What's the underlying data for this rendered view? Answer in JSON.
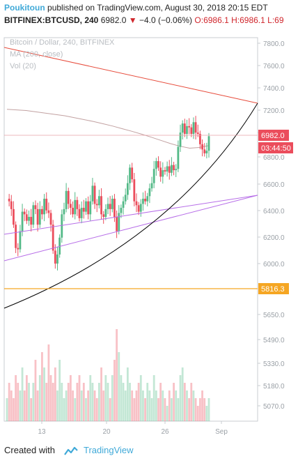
{
  "header": {
    "author": "Poukitoun",
    "published_text": "published on TradingView.com, August 30, 2018 20:15 EDT",
    "symbol": "BITFINEX:BTCUSD, 240",
    "last": "6982.0",
    "change_arrow": "▼",
    "change": "−4.0 (−0.06%)",
    "open_label": "O:",
    "open": "6986.1",
    "high_label": "H:",
    "high": "6986.1",
    "low_label": "L:",
    "low": "69"
  },
  "footer": {
    "created_with": "Created with",
    "brand": "TradingView"
  },
  "colors": {
    "up": "#53b987",
    "down": "#eb4d5c",
    "ma": "#c2a1a1",
    "resistance": "#e74c3c",
    "support_curve": "#000000",
    "lower_trend": "#b76ee8",
    "level_line": "#f5a623",
    "axis_text": "#9aa0a6"
  },
  "chart_data": {
    "type": "candlestick",
    "title": "Bitcoin / Dollar, 240, BITFINEX",
    "legend": [
      "Bitcoin / Dollar, 240, BITFINEX",
      "MA (200, close)",
      "Vol (20)"
    ],
    "price_axis_ticks": [
      "7800.0",
      "7600.0",
      "7400.0",
      "7200.0",
      "7000.0",
      "6800.0",
      "6600.0",
      "6400.0",
      "6200.0",
      "6000.0",
      "5650.0",
      "5490.0",
      "5330.0",
      "5180.0",
      "5070.0"
    ],
    "x_ticks": [
      "13",
      "20",
      "26",
      "Sep"
    ],
    "last_price_label": "6982.0",
    "countdown_label": "03:44:50",
    "level_label": "5816.3",
    "level_value": 5816.3,
    "price_range": [
      5800,
      7900
    ],
    "price_series": [
      6500,
      6480,
      6420,
      6300,
      6120,
      6110,
      6250,
      6400,
      6380,
      6330,
      6360,
      6300,
      6450,
      6420,
      6300,
      6420,
      6380,
      6500,
      6410,
      6390,
      6300,
      6100,
      6000,
      6070,
      6200,
      6380,
      6420,
      6560,
      6460,
      6430,
      6380,
      6490,
      6420,
      6350,
      6430,
      6400,
      6480,
      6380,
      6480,
      6600,
      6460,
      6450,
      6520,
      6380,
      6360,
      6420,
      6460,
      6420,
      6500,
      6360,
      6250,
      6390,
      6430,
      6480,
      6530,
      6620,
      6740,
      6650,
      6480,
      6450,
      6400,
      6460,
      6500,
      6480,
      6520,
      6580,
      6620,
      6730,
      6790,
      6740,
      6670,
      6720,
      6710,
      6750,
      6700,
      6760,
      6720,
      6730,
      6900,
      7010,
      7080,
      7000,
      7060,
      7050,
      7000,
      7090,
      7010,
      7000,
      6920,
      6880,
      6850,
      6870,
      6982
    ],
    "ma200_series": [
      7190,
      7185,
      7180,
      7170,
      7160,
      7150,
      7140,
      7125,
      7110,
      7095,
      7078,
      7060,
      7040,
      7020,
      6998,
      6975,
      6950,
      6925,
      6905,
      6890,
      6895,
      6910
    ],
    "volume_series": [
      0.3,
      0.5,
      0.4,
      0.3,
      0.6,
      0.5,
      0.4,
      0.7,
      0.4,
      0.6,
      0.5,
      0.3,
      0.5,
      0.8,
      0.4,
      0.6,
      0.9,
      0.7,
      0.5,
      1.0,
      0.6,
      0.5,
      0.7,
      0.4,
      0.8,
      0.5,
      0.3,
      0.4,
      0.5,
      0.6,
      0.4,
      0.3,
      0.5,
      0.6,
      0.4,
      0.5,
      0.3,
      0.4,
      0.6,
      0.5,
      0.4,
      0.3,
      0.5,
      0.7,
      0.4,
      0.6,
      0.5,
      0.3,
      0.6,
      0.8,
      1.2,
      0.9,
      0.6,
      0.5,
      0.4,
      0.7,
      0.5,
      0.4,
      0.3,
      0.4,
      0.5,
      0.6,
      0.4,
      0.3,
      0.5,
      0.4,
      0.3,
      0.6,
      0.4,
      0.3,
      0.5,
      0.4,
      0.3,
      0.2,
      0.4,
      0.3,
      0.5,
      0.4,
      0.3,
      0.6,
      0.7,
      0.5,
      0.4,
      0.3,
      0.5,
      0.4,
      0.3,
      0.2,
      0.3,
      0.4,
      0.3,
      0.2,
      0.3
    ]
  }
}
